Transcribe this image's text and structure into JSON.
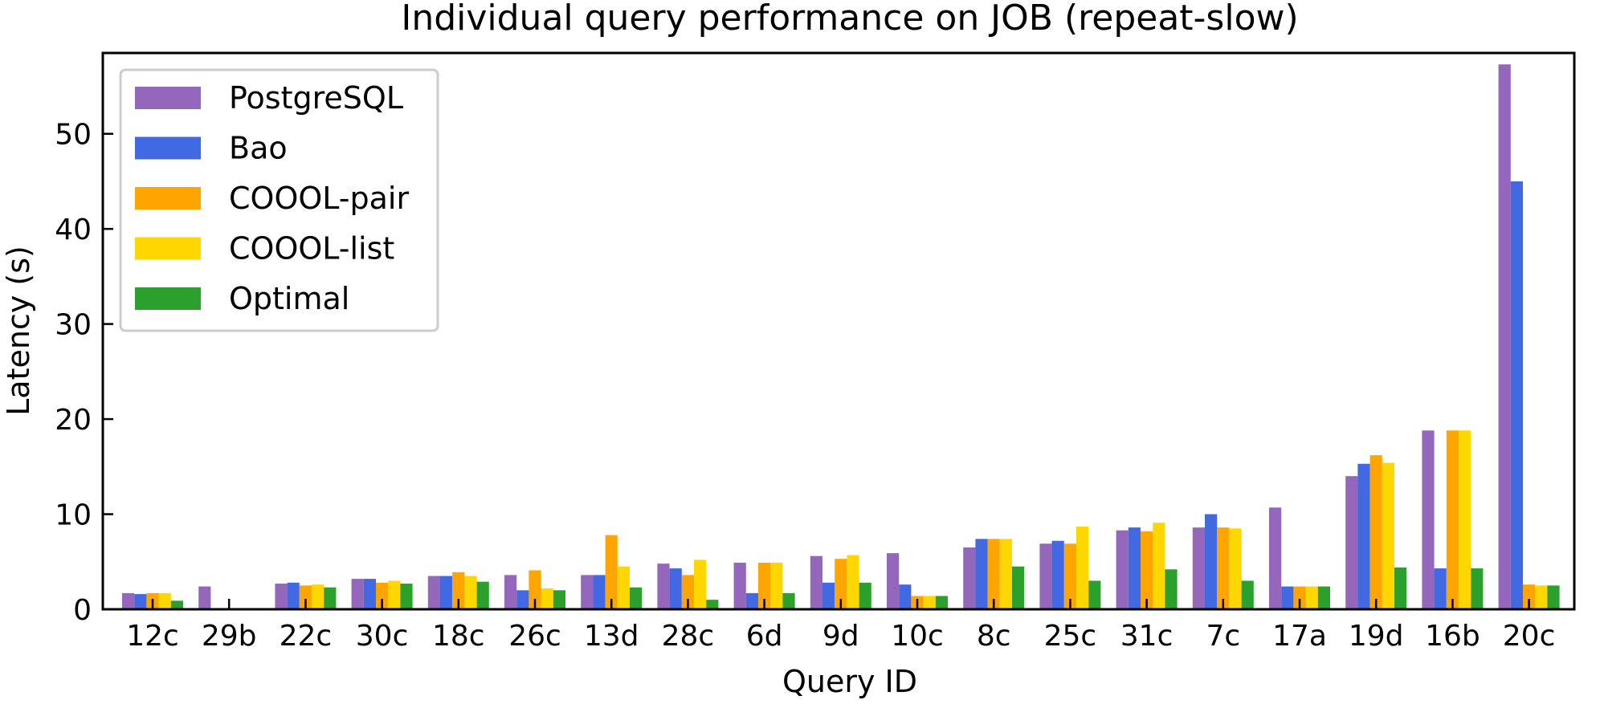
{
  "chart_data": {
    "type": "bar",
    "title": "Individual query performance on JOB (repeat-slow)",
    "xlabel": "Query ID",
    "ylabel": "Latency (s)",
    "ylim": [
      0,
      58.5
    ],
    "yticks": [
      0,
      10,
      20,
      30,
      40,
      50
    ],
    "grid": false,
    "legend_position": "top-left",
    "categories": [
      "12c",
      "29b",
      "22c",
      "30c",
      "18c",
      "26c",
      "13d",
      "28c",
      "6d",
      "9d",
      "10c",
      "8c",
      "25c",
      "31c",
      "7c",
      "17a",
      "19d",
      "16b",
      "20c"
    ],
    "series": [
      {
        "name": "PostgreSQL",
        "color": "#9467bd",
        "values": [
          1.7,
          2.4,
          2.7,
          3.2,
          3.5,
          3.6,
          3.6,
          4.8,
          4.9,
          5.6,
          5.9,
          6.5,
          6.9,
          8.3,
          8.6,
          10.7,
          14.0,
          18.8,
          57.3
        ]
      },
      {
        "name": "Bao",
        "color": "#4169e1",
        "values": [
          1.6,
          0,
          2.8,
          3.2,
          3.5,
          2.0,
          3.6,
          4.3,
          1.7,
          2.8,
          2.6,
          7.4,
          7.2,
          8.6,
          10.0,
          2.4,
          15.3,
          4.3,
          45.0
        ]
      },
      {
        "name": "COOOL-pair",
        "color": "#ffa500",
        "values": [
          1.7,
          0.1,
          2.5,
          2.8,
          3.9,
          4.1,
          7.8,
          3.6,
          4.9,
          5.3,
          1.4,
          7.4,
          6.9,
          8.2,
          8.6,
          2.4,
          16.2,
          18.8,
          2.6
        ]
      },
      {
        "name": "COOOL-list",
        "color": "#ffd700",
        "values": [
          1.7,
          0.1,
          2.6,
          3.0,
          3.5,
          2.2,
          4.5,
          5.2,
          4.9,
          5.7,
          1.4,
          7.4,
          8.7,
          9.1,
          8.5,
          2.4,
          15.4,
          18.8,
          2.5
        ]
      },
      {
        "name": "Optimal",
        "color": "#2ca02c",
        "values": [
          0.9,
          0,
          2.3,
          2.7,
          2.9,
          2.0,
          2.3,
          1.0,
          1.7,
          2.8,
          1.4,
          4.5,
          3.0,
          4.2,
          3.0,
          2.4,
          4.4,
          4.3,
          2.5
        ]
      }
    ]
  }
}
